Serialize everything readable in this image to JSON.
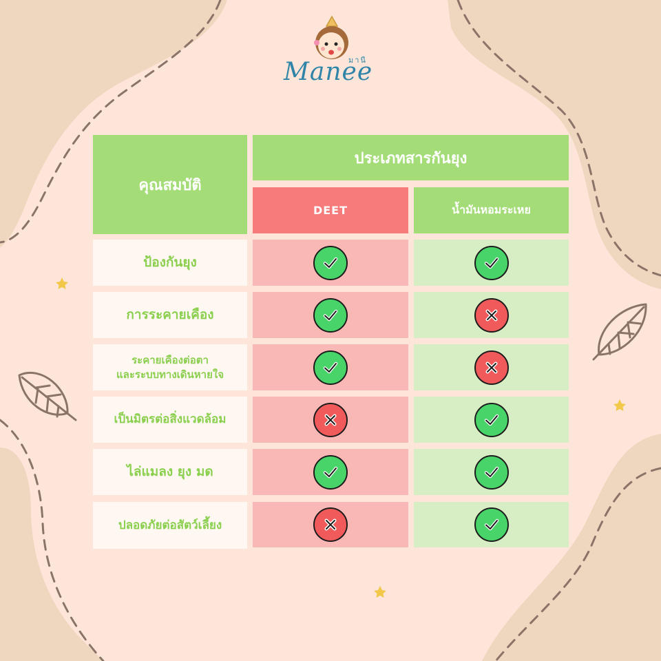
{
  "brand": {
    "name": "Manee",
    "name_thai": "มานี"
  },
  "table": {
    "property_header": "คุณสมบัติ",
    "group_header": "ประเภทสารกันยุง",
    "columns": [
      "DEET",
      "น้ำมันหอมระเหย"
    ],
    "rows": [
      {
        "label": "ป้องกันยุง",
        "deet": true,
        "oil": true
      },
      {
        "label": "การระคายเคือง",
        "deet": true,
        "oil": false
      },
      {
        "label": "ระคายเคืองต่อตา\nและระบบทางเดินหายใจ",
        "deet": true,
        "oil": false
      },
      {
        "label": "เป็นมิตรต่อสิ่งแวดล้อม",
        "deet": false,
        "oil": true
      },
      {
        "label": "ไล่แมลง ยุง มด",
        "deet": true,
        "oil": true
      },
      {
        "label": "ปลอดภัยต่อสัตว์เลี้ยง",
        "deet": false,
        "oil": true
      }
    ]
  },
  "colors": {
    "background": "#fde6d9",
    "blob": "#eed6bf",
    "header_green": "#a4dc78",
    "header_red": "#f87b7b",
    "check_green": "#48d469",
    "cross_red": "#f05a5a",
    "label_text": "#8bcf4f"
  },
  "icons": {
    "yes": "check-circle-icon",
    "no": "cross-circle-icon",
    "decor": [
      "leaf-icon",
      "star-icon"
    ]
  }
}
